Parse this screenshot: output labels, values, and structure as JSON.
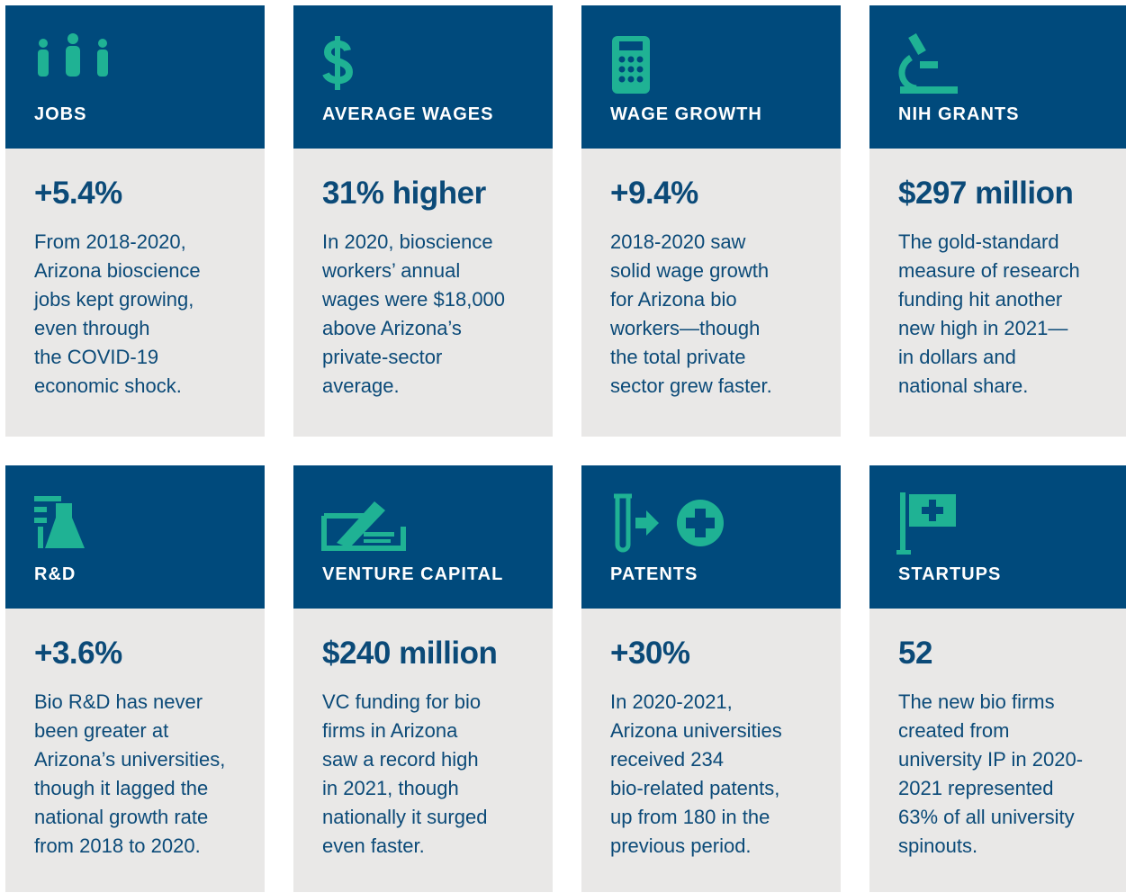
{
  "cards": [
    {
      "title": "JOBS",
      "value": "+5.4%",
      "lines": [
        "From 2018-2020,",
        "Arizona bioscience",
        "jobs kept growing,",
        "even through",
        "the COVID-19",
        "economic shock."
      ]
    },
    {
      "title": "AVERAGE WAGES",
      "value": "31% higher",
      "lines": [
        "In 2020, bioscience",
        "workers’ annual",
        "wages were $18,000",
        "above Arizona’s",
        "private-sector",
        "average."
      ]
    },
    {
      "title": "WAGE GROWTH",
      "value": "+9.4%",
      "lines": [
        "2018-2020 saw",
        "solid wage growth",
        "for Arizona bio",
        "workers—though",
        "the total private",
        "sector grew faster."
      ]
    },
    {
      "title": "NIH GRANTS",
      "value": "$297 million",
      "lines": [
        "The gold-standard",
        "measure of research",
        "funding hit another",
        "new high in 2021—",
        "in dollars and",
        "national share."
      ]
    },
    {
      "title": "R&D",
      "value": "+3.6%",
      "lines": [
        "Bio R&D has never",
        "been greater at",
        "Arizona’s universities,",
        "though it lagged the",
        "national growth rate",
        "from 2018 to 2020."
      ]
    },
    {
      "title": "VENTURE CAPITAL",
      "value": "$240 million",
      "lines": [
        "VC funding for bio",
        "firms in Arizona",
        "saw a record high",
        "in 2021, though",
        "nationally it surged",
        "even faster."
      ]
    },
    {
      "title": "PATENTS",
      "value": "+30%",
      "lines": [
        "In 2020-2021,",
        "Arizona universities",
        "received 234",
        "bio-related patents,",
        "up from 180 in the",
        "previous period."
      ]
    },
    {
      "title": "STARTUPS",
      "value": "52",
      "lines": [
        "The new bio firms",
        "created from",
        "university IP in 2020-",
        "2021 represented",
        "63% of all university",
        "spinouts."
      ]
    }
  ]
}
